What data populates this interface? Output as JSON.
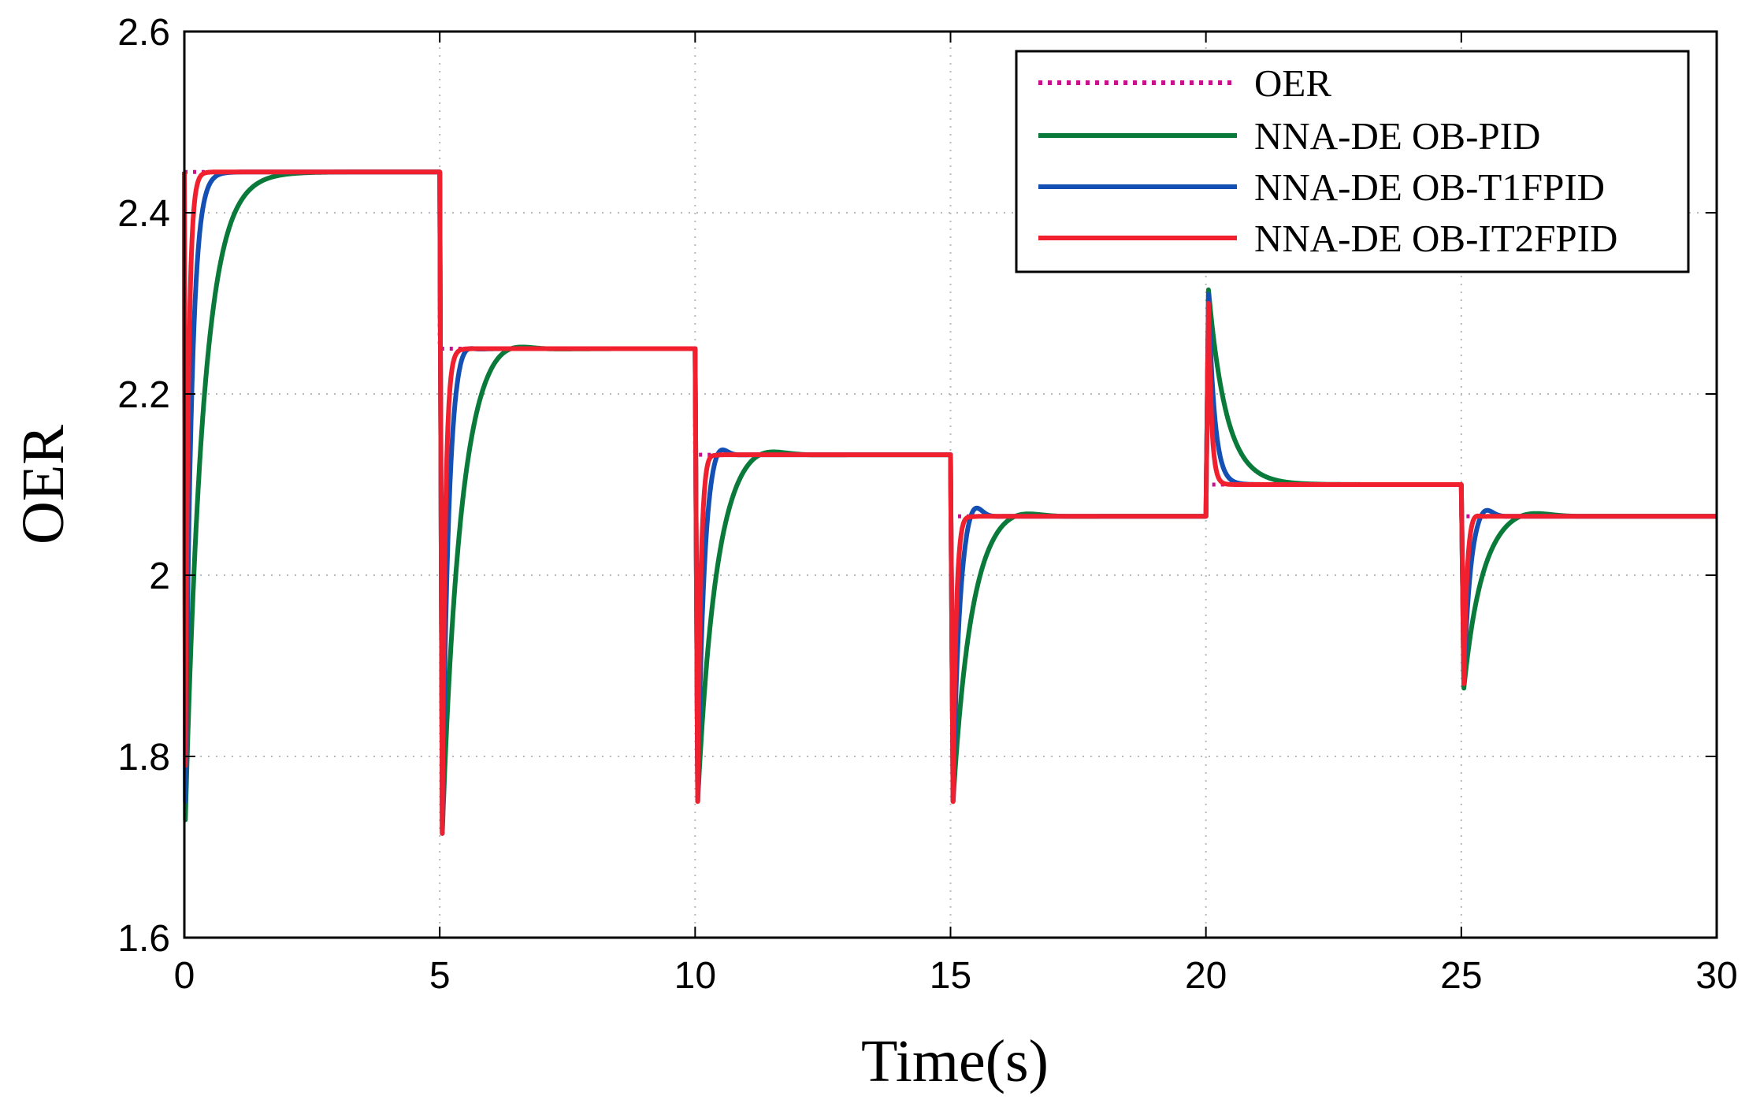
{
  "chart_data": {
    "type": "line",
    "title": "",
    "xlabel": "Time(s)",
    "ylabel": "OER",
    "xlim": [
      0,
      30
    ],
    "ylim": [
      1.6,
      2.6
    ],
    "xticks": [
      0,
      5,
      10,
      15,
      20,
      25,
      30
    ],
    "yticks": [
      1.6,
      1.8,
      2.0,
      2.2,
      2.4,
      2.6
    ],
    "xtick_labels": [
      "0",
      "5",
      "10",
      "15",
      "20",
      "25",
      "30"
    ],
    "ytick_labels": [
      "1.6",
      "1.8",
      "2",
      "2.2",
      "2.4",
      "2.6"
    ],
    "grid": true,
    "legend_position": "top-right",
    "reference": {
      "name": "OER",
      "color": "#c8108c",
      "style": "dotted"
    },
    "setpoints": [
      {
        "start": 0,
        "end": 5,
        "value": 2.445
      },
      {
        "start": 5,
        "end": 10,
        "value": 2.25
      },
      {
        "start": 10,
        "end": 15,
        "value": 2.133
      },
      {
        "start": 15,
        "end": 20,
        "value": 2.065
      },
      {
        "start": 20,
        "end": 25,
        "value": 2.1
      },
      {
        "start": 25,
        "end": 30,
        "value": 2.065
      }
    ],
    "series": [
      {
        "name": "NNA-DE OB-PID",
        "color": "#0a7a3a",
        "tau": 0.35,
        "initial_dip": 1.73,
        "dips": [
          1.715,
          1.75,
          1.75,
          2.315,
          1.875
        ],
        "overshoot": [
          0.013,
          0.012,
          0.01,
          0,
          0.008
        ]
      },
      {
        "name": "NNA-DE OB-T1FPID",
        "color": "#1450b4",
        "tau": 0.12,
        "initial_dip": 1.75,
        "dips": [
          1.715,
          1.75,
          1.75,
          2.31,
          1.88
        ],
        "overshoot": [
          0.01,
          0.015,
          0.018,
          0,
          0.012
        ]
      },
      {
        "name": "NNA-DE OB-IT2FPID",
        "color": "#f0202e",
        "tau": 0.06,
        "initial_dip": 1.79,
        "dips": [
          1.715,
          1.75,
          1.75,
          2.3,
          1.88
        ],
        "overshoot": [
          0,
          0.004,
          0.003,
          0,
          0.004
        ]
      }
    ]
  }
}
